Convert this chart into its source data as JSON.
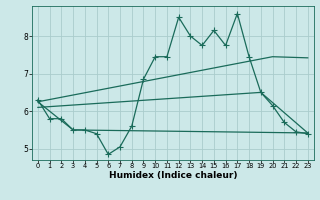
{
  "title": "",
  "xlabel": "Humidex (Indice chaleur)",
  "bg_color": "#cce8e8",
  "grid_color": "#aacccc",
  "line_color": "#1a6b5a",
  "xlim": [
    -0.5,
    23.5
  ],
  "ylim": [
    4.7,
    8.8
  ],
  "xticks": [
    0,
    1,
    2,
    3,
    4,
    5,
    6,
    7,
    8,
    9,
    10,
    11,
    12,
    13,
    14,
    15,
    16,
    17,
    18,
    19,
    20,
    21,
    22,
    23
  ],
  "yticks": [
    5,
    6,
    7,
    8
  ],
  "line1_x": [
    0,
    1,
    2,
    3,
    4,
    5,
    6,
    7,
    8,
    9,
    10,
    11,
    12,
    13,
    14,
    15,
    16,
    17,
    18,
    19,
    20,
    21,
    22,
    23
  ],
  "line1_y": [
    6.3,
    5.8,
    5.8,
    5.5,
    5.5,
    5.4,
    4.85,
    5.05,
    5.6,
    6.85,
    7.45,
    7.45,
    8.5,
    8.0,
    7.75,
    8.15,
    7.75,
    8.6,
    7.45,
    6.5,
    6.15,
    5.7,
    5.45,
    5.4
  ],
  "line2_x": [
    0,
    3,
    23
  ],
  "line2_y": [
    6.25,
    5.5,
    5.42
  ],
  "line3_x": [
    0,
    20,
    23
  ],
  "line3_y": [
    6.25,
    7.45,
    7.42
  ],
  "line4_x": [
    0,
    19,
    23
  ],
  "line4_y": [
    6.1,
    6.5,
    5.42
  ]
}
